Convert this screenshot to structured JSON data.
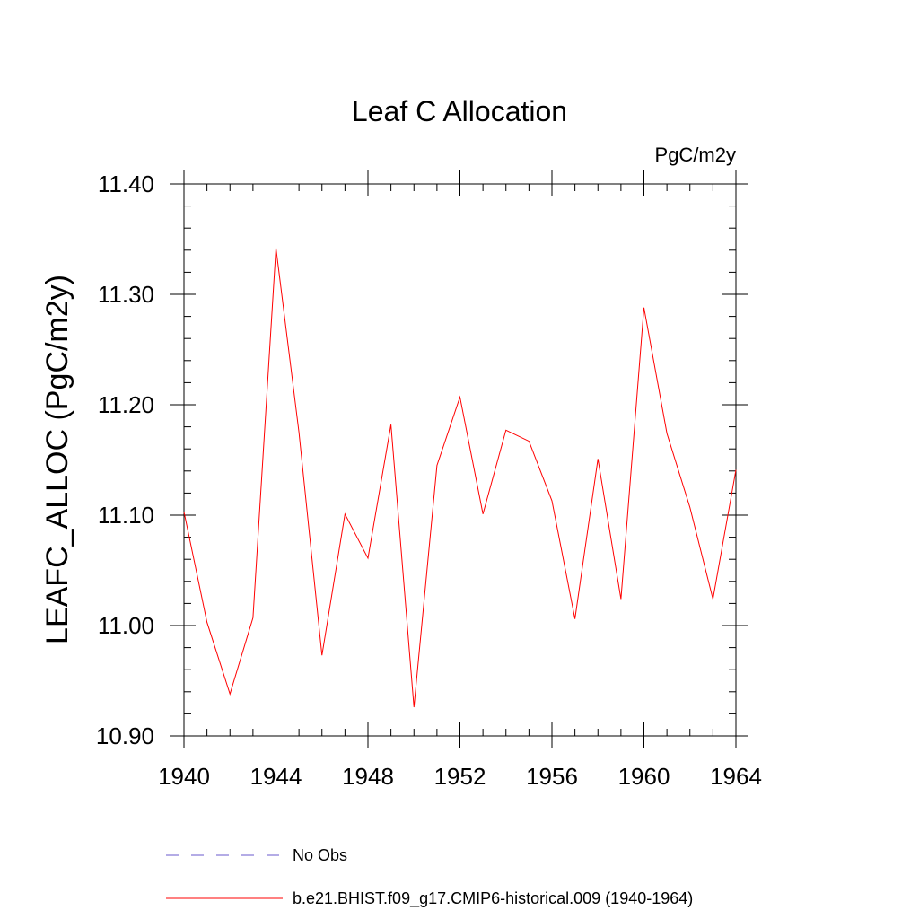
{
  "chart_data": {
    "type": "line",
    "title": "Leaf C Allocation",
    "units_label": "PgC/m2y",
    "xlabel": "",
    "ylabel": "LEAFC_ALLOC  (PgC/m2y)",
    "xlim": [
      1940,
      1964
    ],
    "ylim": [
      10.9,
      11.4
    ],
    "x_ticks": [
      1940,
      1944,
      1948,
      1952,
      1956,
      1960,
      1964
    ],
    "y_ticks": [
      10.9,
      11.0,
      11.1,
      11.2,
      11.3,
      11.4
    ],
    "y_tick_labels": [
      "10.90",
      "11.00",
      "11.10",
      "11.20",
      "11.30",
      "11.40"
    ],
    "series": [
      {
        "name": "b.e21.BHIST.f09_g17.CMIP6-historical.009 (1940-1964)",
        "color": "#ff0000",
        "style": "solid",
        "x": [
          1940,
          1941,
          1942,
          1943,
          1944,
          1945,
          1946,
          1947,
          1948,
          1949,
          1950,
          1951,
          1952,
          1953,
          1954,
          1955,
          1956,
          1957,
          1958,
          1959,
          1960,
          1961,
          1962,
          1963,
          1964
        ],
        "y": [
          11.103,
          11.003,
          10.938,
          11.007,
          11.342,
          11.175,
          10.973,
          11.101,
          11.061,
          11.182,
          10.926,
          11.145,
          11.207,
          11.101,
          11.177,
          11.167,
          11.113,
          11.006,
          11.151,
          11.024,
          11.288,
          11.174,
          11.107,
          11.024,
          11.141
        ]
      }
    ],
    "legend": [
      {
        "label": "No Obs",
        "color": "#6a5acd",
        "style": "dashed"
      },
      {
        "label": "b.e21.BHIST.f09_g17.CMIP6-historical.009 (1940-1964)",
        "color": "#ff0000",
        "style": "solid"
      }
    ]
  }
}
